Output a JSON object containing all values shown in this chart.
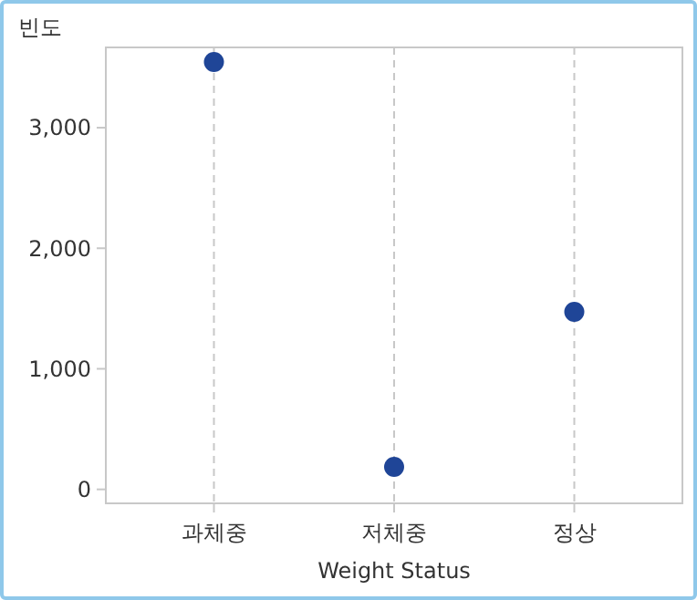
{
  "chart_data": {
    "type": "scatter",
    "ylabel": "빈도",
    "xlabel": "Weight Status",
    "categories": [
      "과체중",
      "저체중",
      "정상"
    ],
    "values": [
      3545,
      186,
      1472
    ],
    "color": "#1f4597",
    "ylim": [
      -116,
      3666
    ],
    "yticks": [
      0,
      {
        "value": 1000,
        "label": "1,000"
      },
      {
        "value": 2000,
        "label": "2,000"
      },
      {
        "value": 3000,
        "label": "3,000"
      }
    ],
    "grid": "x",
    "marker": "circle"
  }
}
